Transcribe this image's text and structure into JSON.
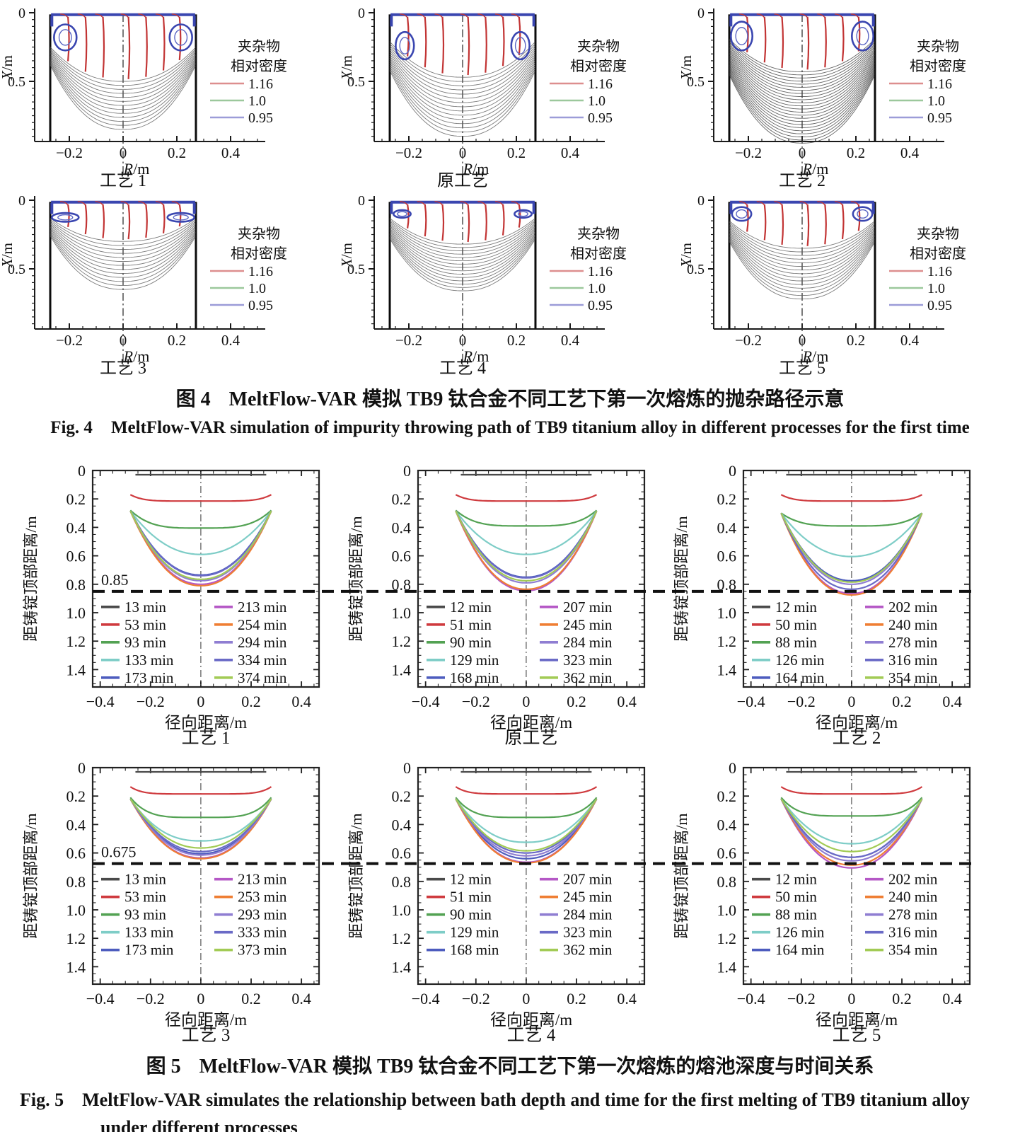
{
  "fig4": {
    "caption": {
      "zh_label": "图 4",
      "zh_text": "MeltFlow-VAR 模拟 TB9 钛合金不同工艺下第一次熔炼的抛杂路径示意",
      "en_label": "Fig. 4",
      "en_text": "MeltFlow-VAR simulation of impurity throwing path of TB9 titanium alloy in different processes for the first time"
    }
  },
  "fig5": {
    "caption": {
      "zh_label": "图 5",
      "zh_text": "MeltFlow-VAR 模拟 TB9 钛合金不同工艺下第一次熔炼的熔池深度与时间关系",
      "en_label": "Fig. 5",
      "en_text": "MeltFlow-VAR simulates the relationship between bath depth and time for the first melting of TB9 titanium alloy under different processes"
    }
  },
  "chart_data": [
    {
      "figure": "图 4 / Fig. 4",
      "type": "line",
      "xlabel": {
        "italic": "R",
        "rest": "/m"
      },
      "ylabel": {
        "italic": "X",
        "rest": "/m"
      },
      "xticks": [
        [
          -0.2,
          "−0.2"
        ],
        [
          0,
          "0"
        ],
        [
          0.2,
          "0.2"
        ],
        [
          0.4,
          "0.4"
        ]
      ],
      "yticks": [
        [
          0,
          "0"
        ],
        [
          0.5,
          "0.5"
        ]
      ],
      "xlim": [
        -0.33,
        0.53
      ],
      "ylim_depth": [
        0,
        0.95
      ],
      "legend_title": [
        "夹杂物",
        "相对密度"
      ],
      "legend": [
        {
          "label": "1.16",
          "color": "#dd8e8e"
        },
        {
          "label": "1.0",
          "color": "#9cc89c"
        },
        {
          "label": "0.95",
          "color": "#9c9cd8"
        }
      ],
      "stream_color": "#c23434",
      "inclusion_color": "#3a46b0",
      "red_line_positions": [
        -0.205,
        -0.14,
        -0.075,
        0.02,
        0.085,
        0.15,
        0.21
      ],
      "subplots": [
        {
          "label": "工艺 1",
          "pool": {
            "count": 13,
            "center": [
              0.5,
              0.85
            ],
            "edge": [
              0.25,
              0.38
            ],
            "color": "#5a5a5a"
          },
          "loop": {
            "cx": 0.215,
            "cy": 0.18,
            "rx": 0.042,
            "ry": 0.095
          }
        },
        {
          "label": "原工艺",
          "pool": {
            "count": 15,
            "center": [
              0.47,
              0.9
            ],
            "edge": [
              0.21,
              0.42
            ],
            "color": "#5a5a5a"
          },
          "loop": {
            "cx": 0.215,
            "cy": 0.24,
            "rx": 0.034,
            "ry": 0.1
          }
        },
        {
          "label": "工艺 2",
          "pool": {
            "count": 24,
            "center": [
              0.43,
              0.95
            ],
            "edge": [
              0.19,
              0.45
            ],
            "color": "#3c3c3c"
          },
          "loop": {
            "cx": 0.225,
            "cy": 0.17,
            "rx": 0.04,
            "ry": 0.105
          }
        },
        {
          "label": "工艺 3",
          "pool": {
            "count": 13,
            "center": [
              0.3,
              0.65
            ],
            "edge": [
              0.13,
              0.26
            ],
            "color": "#5a5a5a"
          },
          "loop": {
            "cx": 0.215,
            "cy": 0.125,
            "rx": 0.05,
            "ry": 0.032
          }
        },
        {
          "label": "工艺 4",
          "pool": {
            "count": 15,
            "center": [
              0.32,
              0.66
            ],
            "edge": [
              0.13,
              0.28
            ],
            "color": "#5a5a5a"
          },
          "loop": {
            "cx": 0.225,
            "cy": 0.1,
            "rx": 0.032,
            "ry": 0.028
          }
        },
        {
          "label": "工艺 5",
          "pool": {
            "count": 15,
            "center": [
              0.35,
              0.72
            ],
            "edge": [
              0.15,
              0.3
            ],
            "color": "#5a5a5a"
          },
          "loop": {
            "cx": 0.225,
            "cy": 0.1,
            "rx": 0.036,
            "ry": 0.05
          }
        }
      ]
    },
    {
      "figure": "图 5 / Fig. 5",
      "type": "line",
      "xlabel": "径向距离/m",
      "ylabel": "距铸锭顶部距离/m",
      "xticks": [
        [
          -0.4,
          "−0.4"
        ],
        [
          -0.2,
          "−0.2"
        ],
        [
          0,
          "0"
        ],
        [
          0.2,
          "0.2"
        ],
        [
          0.4,
          "0.4"
        ]
      ],
      "yticks": [
        [
          0,
          "0"
        ],
        [
          0.2,
          "0.2"
        ],
        [
          0.4,
          "0.4"
        ],
        [
          0.6,
          "0.6"
        ],
        [
          0.8,
          "0.8"
        ],
        [
          1.0,
          "1.0"
        ],
        [
          1.2,
          "1.2"
        ],
        [
          1.4,
          "1.4"
        ]
      ],
      "xlim": [
        -0.43,
        0.47
      ],
      "ylim_depth": [
        0,
        1.52
      ],
      "series_colors": [
        "#4a4a4a",
        "#cf3a3e",
        "#53a253",
        "#7ecdc7",
        "#4d5cbe",
        "#b558c6",
        "#ef7e33",
        "#8f7ed2",
        "#6a6ac6",
        "#a2cb55"
      ],
      "subplots": [
        {
          "label": "工艺 1",
          "dash_depth": 0.85,
          "annotation": "0.85",
          "legend_labels": [
            "13 min",
            "53 min",
            "93 min",
            "133 min",
            "173 min",
            "213 min",
            "254 min",
            "294 min",
            "334 min",
            "374 min"
          ],
          "center_depths": [
            0.03,
            0.215,
            0.405,
            0.59,
            0.735,
            0.8,
            0.81,
            0.775,
            0.74,
            0.765
          ],
          "edge_depths": [
            0.03,
            0.17,
            0.28,
            0.285,
            0.285,
            0.285,
            0.285,
            0.285,
            0.285,
            0.285
          ]
        },
        {
          "label": "原工艺",
          "dash_depth": 0.85,
          "annotation": "",
          "legend_labels": [
            "12 min",
            "51 min",
            "90 min",
            "129 min",
            "168 min",
            "207 min",
            "245 min",
            "284 min",
            "323 min",
            "362 min"
          ],
          "center_depths": [
            0.03,
            0.215,
            0.39,
            0.59,
            0.75,
            0.845,
            0.835,
            0.79,
            0.755,
            0.775
          ],
          "edge_depths": [
            0.03,
            0.17,
            0.28,
            0.285,
            0.285,
            0.285,
            0.285,
            0.285,
            0.285,
            0.285
          ]
        },
        {
          "label": "工艺 2",
          "dash_depth": 0.85,
          "annotation": "",
          "legend_labels": [
            "12 min",
            "50 min",
            "88 min",
            "126 min",
            "164 min",
            "202 min",
            "240 min",
            "278 min",
            "316 min",
            "354 min"
          ],
          "center_depths": [
            0.03,
            0.215,
            0.39,
            0.605,
            0.775,
            0.865,
            0.875,
            0.8,
            0.835,
            0.785
          ],
          "edge_depths": [
            0.03,
            0.17,
            0.3,
            0.3,
            0.3,
            0.3,
            0.3,
            0.3,
            0.3,
            0.3
          ]
        },
        {
          "label": "工艺 3",
          "dash_depth": 0.675,
          "annotation": "0.675",
          "legend_labels": [
            "13 min",
            "53 min",
            "93 min",
            "133 min",
            "173 min",
            "213 min",
            "253 min",
            "293 min",
            "333 min",
            "373 min"
          ],
          "center_depths": [
            0.03,
            0.185,
            0.35,
            0.515,
            0.605,
            0.635,
            0.64,
            0.615,
            0.59,
            0.565
          ],
          "edge_depths": [
            0.03,
            0.135,
            0.21,
            0.22,
            0.22,
            0.22,
            0.22,
            0.22,
            0.22,
            0.22
          ]
        },
        {
          "label": "工艺 4",
          "dash_depth": 0.675,
          "annotation": "",
          "legend_labels": [
            "12 min",
            "51 min",
            "90 min",
            "129 min",
            "168 min",
            "207 min",
            "245 min",
            "284 min",
            "323 min",
            "362 min"
          ],
          "center_depths": [
            0.03,
            0.185,
            0.35,
            0.525,
            0.64,
            0.665,
            0.67,
            0.62,
            0.6,
            0.585
          ],
          "edge_depths": [
            0.03,
            0.135,
            0.21,
            0.22,
            0.22,
            0.22,
            0.22,
            0.22,
            0.22,
            0.22
          ]
        },
        {
          "label": "工艺 5",
          "dash_depth": 0.675,
          "annotation": "",
          "legend_labels": [
            "12 min",
            "50 min",
            "88 min",
            "126 min",
            "164 min",
            "202 min",
            "240 min",
            "278 min",
            "316 min",
            "354 min"
          ],
          "center_depths": [
            0.03,
            0.185,
            0.34,
            0.535,
            0.63,
            0.705,
            0.685,
            0.655,
            0.63,
            0.59
          ],
          "edge_depths": [
            0.03,
            0.135,
            0.21,
            0.22,
            0.22,
            0.22,
            0.22,
            0.22,
            0.22,
            0.22
          ]
        }
      ]
    }
  ]
}
